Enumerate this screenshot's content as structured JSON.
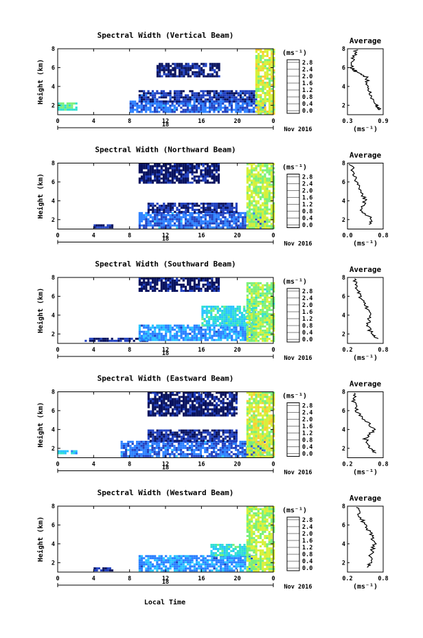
{
  "figure": {
    "xlabel": "Local Time",
    "date_label": "Nov 2016",
    "colorbar_unit": "(ms⁻¹)",
    "colorbar_ticks": [
      "0.0",
      "0.4",
      "0.8",
      "1.2",
      "1.6",
      "2.0",
      "2.4",
      "2.8"
    ],
    "average_title": "Average",
    "average_xlabel": "(ms⁻¹)"
  },
  "panels": [
    {
      "title": "Spectral Width (Vertical Beam)",
      "ylabel": "Height (km)",
      "day_label": "18",
      "x_ticks": [
        "0",
        "4",
        "8",
        "12",
        "16",
        "20",
        "0"
      ],
      "y_ticks": [
        "2",
        "4",
        "6",
        "8"
      ],
      "avg_x_ticks": [
        "0.3",
        "0.9"
      ]
    },
    {
      "title": "Spectral Width (Northward Beam)",
      "ylabel": "Height (km)",
      "day_label": "18",
      "x_ticks": [
        "0",
        "4",
        "8",
        "12",
        "16",
        "20",
        "0"
      ],
      "y_ticks": [
        "2",
        "4",
        "6",
        "8"
      ],
      "avg_x_ticks": [
        "0.0",
        "0.8"
      ]
    },
    {
      "title": "Spectral Width (Southward Beam)",
      "ylabel": "Height (km)",
      "day_label": "18",
      "x_ticks": [
        "0",
        "4",
        "8",
        "12",
        "16",
        "20",
        "0"
      ],
      "y_ticks": [
        "2",
        "4",
        "6",
        "8"
      ],
      "avg_x_ticks": [
        "0.2",
        "0.8"
      ]
    },
    {
      "title": "Spectral Width (Eastward Beam)",
      "ylabel": "Height (km)",
      "day_label": "18",
      "x_ticks": [
        "0",
        "4",
        "8",
        "12",
        "16",
        "20",
        "0"
      ],
      "y_ticks": [
        "2",
        "4",
        "6",
        "8"
      ],
      "avg_x_ticks": [
        "0.2",
        "0.8"
      ]
    },
    {
      "title": "Spectral Width (Westward Beam)",
      "ylabel": "Height (km)",
      "day_label": "18",
      "x_ticks": [
        "0",
        "4",
        "8",
        "12",
        "16",
        "20",
        "0"
      ],
      "y_ticks": [
        "2",
        "4",
        "6",
        "8"
      ],
      "avg_x_ticks": [
        "0.2",
        "0.8"
      ]
    }
  ],
  "chart_data": [
    {
      "type": "heatmap",
      "title": "Spectral Width (Vertical Beam)",
      "xlabel": "",
      "ylabel": "Height (km)",
      "xlim": [
        0,
        24
      ],
      "ylim": [
        1,
        8
      ],
      "colorbar_range": [
        0.0,
        2.8
      ],
      "units": "ms⁻¹",
      "regions": [
        {
          "x": [
            0,
            2
          ],
          "y": [
            1.5,
            2.3
          ],
          "value": 1.4
        },
        {
          "x": [
            8,
            23
          ],
          "y": [
            1.2,
            2.5
          ],
          "value": 0.6
        },
        {
          "x": [
            9,
            22
          ],
          "y": [
            2.5,
            3.6
          ],
          "value": 0.35
        },
        {
          "x": [
            11,
            18
          ],
          "y": [
            5.0,
            6.5
          ],
          "value": 0.15
        },
        {
          "x": [
            22,
            24
          ],
          "y": [
            1.2,
            8.0
          ],
          "value": 1.8
        }
      ],
      "average": {
        "xlim": [
          0.3,
          0.9
        ],
        "ylim": [
          1,
          8
        ],
        "height": [
          1.5,
          2.0,
          3.0,
          4.0,
          5.0,
          5.5,
          6.0,
          7.0,
          8.0
        ],
        "value": [
          0.85,
          0.78,
          0.68,
          0.65,
          0.62,
          0.45,
          0.38,
          0.4,
          0.45
        ]
      }
    },
    {
      "type": "heatmap",
      "title": "Spectral Width (Northward Beam)",
      "xlabel": "",
      "ylabel": "Height (km)",
      "xlim": [
        0,
        24
      ],
      "ylim": [
        1,
        8
      ],
      "colorbar_range": [
        0.0,
        2.8
      ],
      "units": "ms⁻¹",
      "regions": [
        {
          "x": [
            4,
            6
          ],
          "y": [
            1.2,
            1.5
          ],
          "value": 0.3
        },
        {
          "x": [
            9,
            23
          ],
          "y": [
            1.2,
            2.8
          ],
          "value": 0.6
        },
        {
          "x": [
            10,
            20
          ],
          "y": [
            2.8,
            3.8
          ],
          "value": 0.3
        },
        {
          "x": [
            9,
            18
          ],
          "y": [
            6.0,
            8.0
          ],
          "value": 0.15
        },
        {
          "x": [
            21,
            24
          ],
          "y": [
            1.2,
            8.0
          ],
          "value": 1.7
        }
      ],
      "average": {
        "xlim": [
          0.0,
          0.8
        ],
        "ylim": [
          1,
          8
        ],
        "height": [
          1.5,
          2.0,
          3.0,
          4.0,
          5.0,
          6.0,
          7.0,
          8.0
        ],
        "value": [
          0.5,
          0.55,
          0.3,
          0.4,
          0.3,
          0.2,
          0.15,
          0.05
        ]
      }
    },
    {
      "type": "heatmap",
      "title": "Spectral Width (Southward Beam)",
      "xlabel": "",
      "ylabel": "Height (km)",
      "xlim": [
        0,
        24
      ],
      "ylim": [
        1,
        8
      ],
      "colorbar_range": [
        0.0,
        2.8
      ],
      "units": "ms⁻¹",
      "regions": [
        {
          "x": [
            3,
            10
          ],
          "y": [
            1.2,
            1.6
          ],
          "value": 0.3
        },
        {
          "x": [
            9,
            22
          ],
          "y": [
            1.3,
            3.0
          ],
          "value": 0.8
        },
        {
          "x": [
            16,
            22
          ],
          "y": [
            3.0,
            5.0
          ],
          "value": 1.2
        },
        {
          "x": [
            9,
            18
          ],
          "y": [
            6.5,
            8.0
          ],
          "value": 0.15
        },
        {
          "x": [
            21,
            24
          ],
          "y": [
            1.2,
            7.5
          ],
          "value": 1.6
        }
      ],
      "average": {
        "xlim": [
          0.2,
          0.8
        ],
        "ylim": [
          1,
          8
        ],
        "height": [
          1.5,
          2.0,
          3.0,
          4.0,
          5.0,
          6.0,
          7.0,
          8.0
        ],
        "value": [
          0.7,
          0.6,
          0.55,
          0.58,
          0.52,
          0.4,
          0.35,
          0.3
        ]
      }
    },
    {
      "type": "heatmap",
      "title": "Spectral Width (Eastward Beam)",
      "xlabel": "",
      "ylabel": "Height (km)",
      "xlim": [
        0,
        24
      ],
      "ylim": [
        1,
        8
      ],
      "colorbar_range": [
        0.0,
        2.8
      ],
      "units": "ms⁻¹",
      "regions": [
        {
          "x": [
            0,
            2
          ],
          "y": [
            1.4,
            1.8
          ],
          "value": 1.0
        },
        {
          "x": [
            7,
            23
          ],
          "y": [
            1.2,
            2.8
          ],
          "value": 0.6
        },
        {
          "x": [
            10,
            20
          ],
          "y": [
            2.8,
            4.0
          ],
          "value": 0.3
        },
        {
          "x": [
            10,
            20
          ],
          "y": [
            5.5,
            8.0
          ],
          "value": 0.15
        },
        {
          "x": [
            21,
            24
          ],
          "y": [
            1.2,
            8.0
          ],
          "value": 1.8
        }
      ],
      "average": {
        "xlim": [
          0.2,
          0.8
        ],
        "ylim": [
          1,
          8
        ],
        "height": [
          1.5,
          2.0,
          3.0,
          4.0,
          5.0,
          6.0,
          7.0,
          8.0
        ],
        "value": [
          0.65,
          0.6,
          0.5,
          0.65,
          0.5,
          0.35,
          0.3,
          0.35
        ]
      }
    },
    {
      "type": "heatmap",
      "title": "Spectral Width (Westward Beam)",
      "xlabel": "Local Time",
      "ylabel": "Height (km)",
      "xlim": [
        0,
        24
      ],
      "ylim": [
        1,
        8
      ],
      "colorbar_range": [
        0.0,
        2.8
      ],
      "units": "ms⁻¹",
      "regions": [
        {
          "x": [
            4,
            6
          ],
          "y": [
            1.2,
            1.5
          ],
          "value": 0.3
        },
        {
          "x": [
            9,
            22
          ],
          "y": [
            1.2,
            2.8
          ],
          "value": 0.8
        },
        {
          "x": [
            17,
            21
          ],
          "y": [
            2.8,
            4.0
          ],
          "value": 1.2
        },
        {
          "x": [
            21,
            24
          ],
          "y": [
            1.2,
            8.0
          ],
          "value": 1.7
        }
      ],
      "average": {
        "xlim": [
          0.2,
          0.8
        ],
        "ylim": [
          1,
          8
        ],
        "height": [
          1.5,
          2.0,
          3.0,
          4.0,
          5.0,
          6.0,
          7.0,
          8.0
        ],
        "value": [
          0.55,
          0.58,
          0.6,
          0.65,
          0.6,
          0.5,
          0.4,
          0.35
        ]
      }
    }
  ]
}
